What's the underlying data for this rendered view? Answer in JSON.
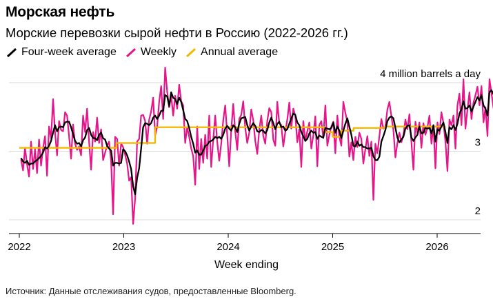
{
  "header": {
    "title": "Морская нефть",
    "subtitle": "Морские перевозки сырой нефти в Россию (2022-2026 гг.)"
  },
  "legend": {
    "items": [
      {
        "label": "Four-week average",
        "color": "#000000"
      },
      {
        "label": "Weekly",
        "color": "#e6168a"
      },
      {
        "label": "Annual average",
        "color": "#f5b800"
      }
    ]
  },
  "footer": {
    "source": "Источник: Данные отслеживания судов, предоставленные Bloomberg."
  },
  "chart_data": {
    "type": "line",
    "xlabel": "Week ending",
    "ylabel": "",
    "ylim": [
      1.97,
      4.3
    ],
    "xlim": [
      2021.9,
      2026.4
    ],
    "x_ticks": [
      "2022",
      "2023",
      "2024",
      "2025",
      "2026"
    ],
    "y_ticks": [
      {
        "value": 2,
        "label": "2"
      },
      {
        "value": 3,
        "label": "3"
      },
      {
        "value": 4,
        "label": "4 million barrels a day"
      }
    ],
    "grid": true,
    "legend_position": "top-left",
    "x_start": "2022-01-07",
    "x_step": "weekly",
    "series": [
      {
        "name": "Weekly",
        "color": "#e6168a",
        "values": [
          2.88,
          2.72,
          3.05,
          2.81,
          2.63,
          3.14,
          2.74,
          3.03,
          2.68,
          3.17,
          2.79,
          3.05,
          3.22,
          2.64,
          3.36,
          3.19,
          3.76,
          3.27,
          2.94,
          3.44,
          3.31,
          3.29,
          3.57,
          3.52,
          3.22,
          2.89,
          3.39,
          3.11,
          3.02,
          3.07,
          2.94,
          3.52,
          3.28,
          3.62,
          3.14,
          2.73,
          3.28,
          3.14,
          3.49,
          3.12,
          3.32,
          2.87,
          2.98,
          3.08,
          3.14,
          2.85,
          2.08,
          3.21,
          3.18,
          2.79,
          3.11,
          3.06,
          2.95,
          2.82,
          2.57,
          2.62,
          1.94,
          2.31,
          3.14,
          3.18,
          3.52,
          3.53,
          3.44,
          3.11,
          3.46,
          3.58,
          3.78,
          3.23,
          3.36,
          3.72,
          3.95,
          3.47,
          4.22,
          3.87,
          3.64,
          3.81,
          3.52,
          3.81,
          3.62,
          3.97,
          3.73,
          3.67,
          3.12,
          3.35,
          3.21,
          3.04,
          2.93,
          2.51,
          3.36,
          2.74,
          3.18,
          2.83,
          3.24,
          2.89,
          3.52,
          2.77,
          3.17,
          3.52,
          3.14,
          2.86,
          3.11,
          3.45,
          3.67,
          3.24,
          2.78,
          3.31,
          3.69,
          3.29,
          3.02,
          3.47,
          3.53,
          3.73,
          3.34,
          3.12,
          3.27,
          3.61,
          3.45,
          3.15,
          2.96,
          3.31,
          3.52,
          3.22,
          3.11,
          3.44,
          3.63,
          3.57,
          3.17,
          3.08,
          3.72,
          3.41,
          3.38,
          3.07,
          3.28,
          3.46,
          3.71,
          3.33,
          3.62,
          3.52,
          3.13,
          3.32,
          2.77,
          3.44,
          3.15,
          3.29,
          3.42,
          3.04,
          3.23,
          3.51,
          2.78,
          3.38,
          3.44,
          3.19,
          3.67,
          3.08,
          3.24,
          3.36,
          3.43,
          2.97,
          3.52,
          3.21,
          3.08,
          3.72,
          3.56,
          3.43,
          2.92,
          3.13,
          2.87,
          3.21,
          3.06,
          3.27,
          3.18,
          2.82,
          3.03,
          3.22,
          2.93,
          3.14,
          2.29,
          3.11,
          2.97,
          3.22,
          3.47,
          3.33,
          3.36,
          3.61,
          3.72,
          3.51,
          3.31,
          2.91,
          3.12,
          3.27,
          3.13,
          3.24,
          3.46,
          3.32,
          3.54,
          3.13,
          2.73,
          3.43,
          3.26,
          3.42,
          3.05,
          3.41,
          3.24,
          3.35,
          3.52,
          3.11,
          3.38,
          2.75,
          3.42,
          3.25,
          3.57,
          3.41,
          3.14,
          2.71,
          3.46,
          3.38,
          3.52,
          3.04,
          3.67,
          3.84,
          3.38,
          4.05,
          3.33,
          3.61,
          3.86,
          3.47,
          3.71,
          3.82,
          3.94,
          3.67,
          3.95,
          3.42,
          3.64,
          3.22,
          4.05,
          3.85,
          3.63,
          4.02,
          3.71,
          3.33,
          3.58,
          3.24,
          3.17,
          3.46,
          3.54,
          3.13,
          3.26,
          3.41,
          3.52,
          3.15,
          3.38,
          3.48
        ]
      },
      {
        "name": "Four-week average",
        "color": "#000000",
        "values": [
          2.9,
          2.85,
          2.83,
          2.86,
          2.8,
          2.82,
          2.82,
          2.85,
          2.87,
          2.9,
          2.93,
          2.98,
          3.06,
          3.04,
          3.08,
          3.15,
          3.27,
          3.38,
          3.29,
          3.35,
          3.36,
          3.35,
          3.42,
          3.43,
          3.43,
          3.35,
          3.25,
          3.15,
          3.11,
          3.12,
          3.07,
          3.16,
          3.2,
          3.31,
          3.34,
          3.24,
          3.19,
          3.19,
          3.16,
          3.24,
          3.27,
          3.19,
          3.17,
          3.08,
          3.04,
          3.01,
          2.79,
          2.83,
          2.83,
          2.82,
          2.83,
          3.03,
          3.0,
          2.94,
          2.85,
          2.74,
          2.49,
          2.37,
          2.61,
          2.75,
          3.04,
          3.35,
          3.41,
          3.4,
          3.38,
          3.41,
          3.49,
          3.52,
          3.47,
          3.52,
          3.59,
          3.59,
          3.82,
          3.8,
          3.66,
          3.86,
          3.78,
          3.76,
          3.69,
          3.78,
          3.72,
          3.6,
          3.47,
          3.44,
          3.34,
          3.21,
          3.11,
          2.98,
          3.01,
          2.95,
          2.95,
          3.01,
          3.08,
          3.09,
          3.14,
          3.15,
          3.17,
          3.21,
          3.19,
          3.21,
          3.18,
          3.24,
          3.33,
          3.37,
          3.33,
          3.3,
          3.38,
          3.35,
          3.28,
          3.4,
          3.48,
          3.49,
          3.5,
          3.38,
          3.3,
          3.36,
          3.41,
          3.37,
          3.29,
          3.28,
          3.31,
          3.3,
          3.26,
          3.31,
          3.42,
          3.49,
          3.41,
          3.32,
          3.4,
          3.43,
          3.35,
          3.36,
          3.3,
          3.32,
          3.4,
          3.48,
          3.55,
          3.53,
          3.42,
          3.38,
          3.28,
          3.22,
          3.15,
          3.18,
          3.26,
          3.3,
          3.27,
          3.28,
          3.18,
          3.23,
          3.21,
          3.2,
          3.34,
          3.33,
          3.32,
          3.34,
          3.42,
          3.27,
          3.36,
          3.3,
          3.19,
          3.3,
          3.4,
          3.48,
          3.36,
          3.24,
          3.08,
          3.07,
          3.14,
          3.08,
          3.1,
          3.06,
          3.06,
          3.04,
          3.04,
          3.05,
          2.93,
          2.87,
          2.87,
          2.92,
          3.14,
          3.22,
          3.31,
          3.44,
          3.49,
          3.51,
          3.48,
          3.34,
          3.2,
          3.13,
          3.17,
          3.21,
          3.33,
          3.37,
          3.38,
          3.2,
          3.15,
          3.2,
          3.24,
          3.36,
          3.26,
          3.27,
          3.34,
          3.33,
          3.34,
          3.26,
          3.38,
          3.14,
          3.32,
          3.3,
          3.36,
          3.42,
          3.28,
          3.12,
          3.35,
          3.32,
          3.38,
          3.31,
          3.4,
          3.55,
          3.61,
          3.73,
          3.62,
          3.63,
          3.67,
          3.58,
          3.65,
          3.72,
          3.79,
          3.74,
          3.82,
          3.67,
          3.62,
          3.52,
          3.86,
          3.89,
          3.83,
          3.88,
          3.8,
          3.54,
          3.32,
          3.21,
          3.14,
          3.18,
          3.24,
          3.25,
          3.28,
          3.32,
          3.37,
          3.36,
          3.38,
          3.4
        ]
      },
      {
        "name": "Annual average",
        "color": "#f5b800",
        "step_segments": [
          {
            "from": 2022.0,
            "to": 2022.93,
            "value": 3.05
          },
          {
            "from": 2022.93,
            "to": 2023.3,
            "value": 3.12
          },
          {
            "from": 2023.3,
            "to": 2024.92,
            "value": 3.35
          },
          {
            "from": 2024.92,
            "to": 2024.96,
            "value": 3.28
          },
          {
            "from": 2024.96,
            "to": 2025.0,
            "value": 3.28
          },
          {
            "from": 2025.0,
            "to": 2025.08,
            "value": 3.21
          },
          {
            "from": 2025.08,
            "to": 2025.2,
            "value": 3.3
          },
          {
            "from": 2025.2,
            "to": 2025.5,
            "value": 3.34
          },
          {
            "from": 2025.5,
            "to": 2026.08,
            "value": 3.36
          }
        ]
      }
    ]
  }
}
